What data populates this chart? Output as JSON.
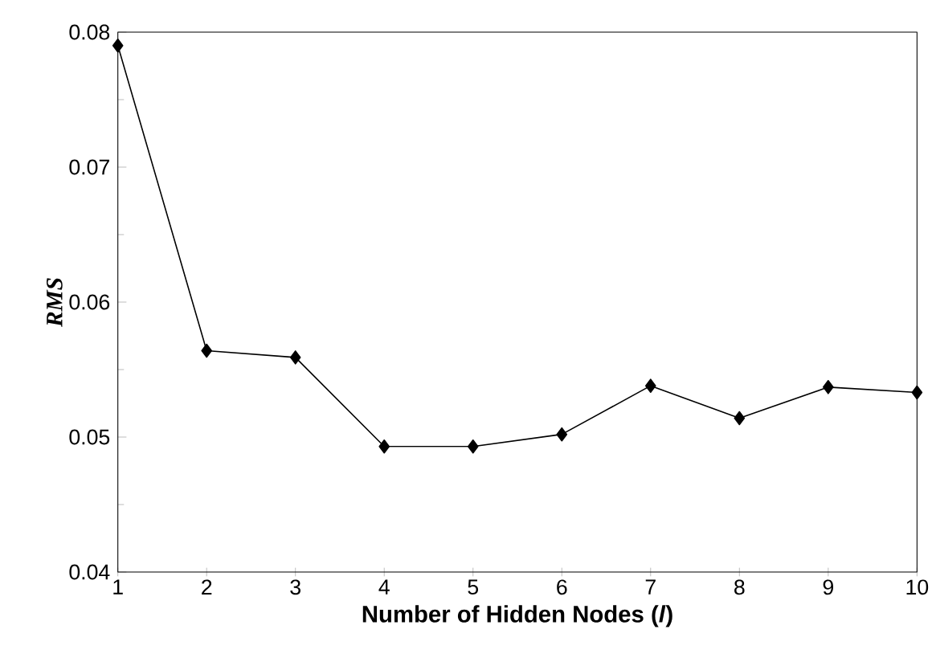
{
  "chart_data": {
    "type": "line",
    "xlabel": "Number of Hidden Nodes (*l*)",
    "ylabel": "RMS",
    "x": [
      1,
      2,
      3,
      4,
      5,
      6,
      7,
      8,
      9,
      10
    ],
    "series": [
      {
        "color": "#000000",
        "values": [
          0.079,
          0.0564,
          0.0559,
          0.0493,
          0.0493,
          0.0502,
          0.0538,
          0.0514,
          0.0537,
          0.0533
        ]
      }
    ],
    "xlim": [
      1,
      10
    ],
    "xticks": [
      1,
      2,
      3,
      4,
      5,
      6,
      7,
      8,
      9,
      10
    ],
    "ylim": [
      0.04,
      0.08
    ],
    "yticks": [
      0.04,
      0.05,
      0.06,
      0.07,
      0.08
    ],
    "marker": "diamond",
    "line_style": "solid"
  }
}
